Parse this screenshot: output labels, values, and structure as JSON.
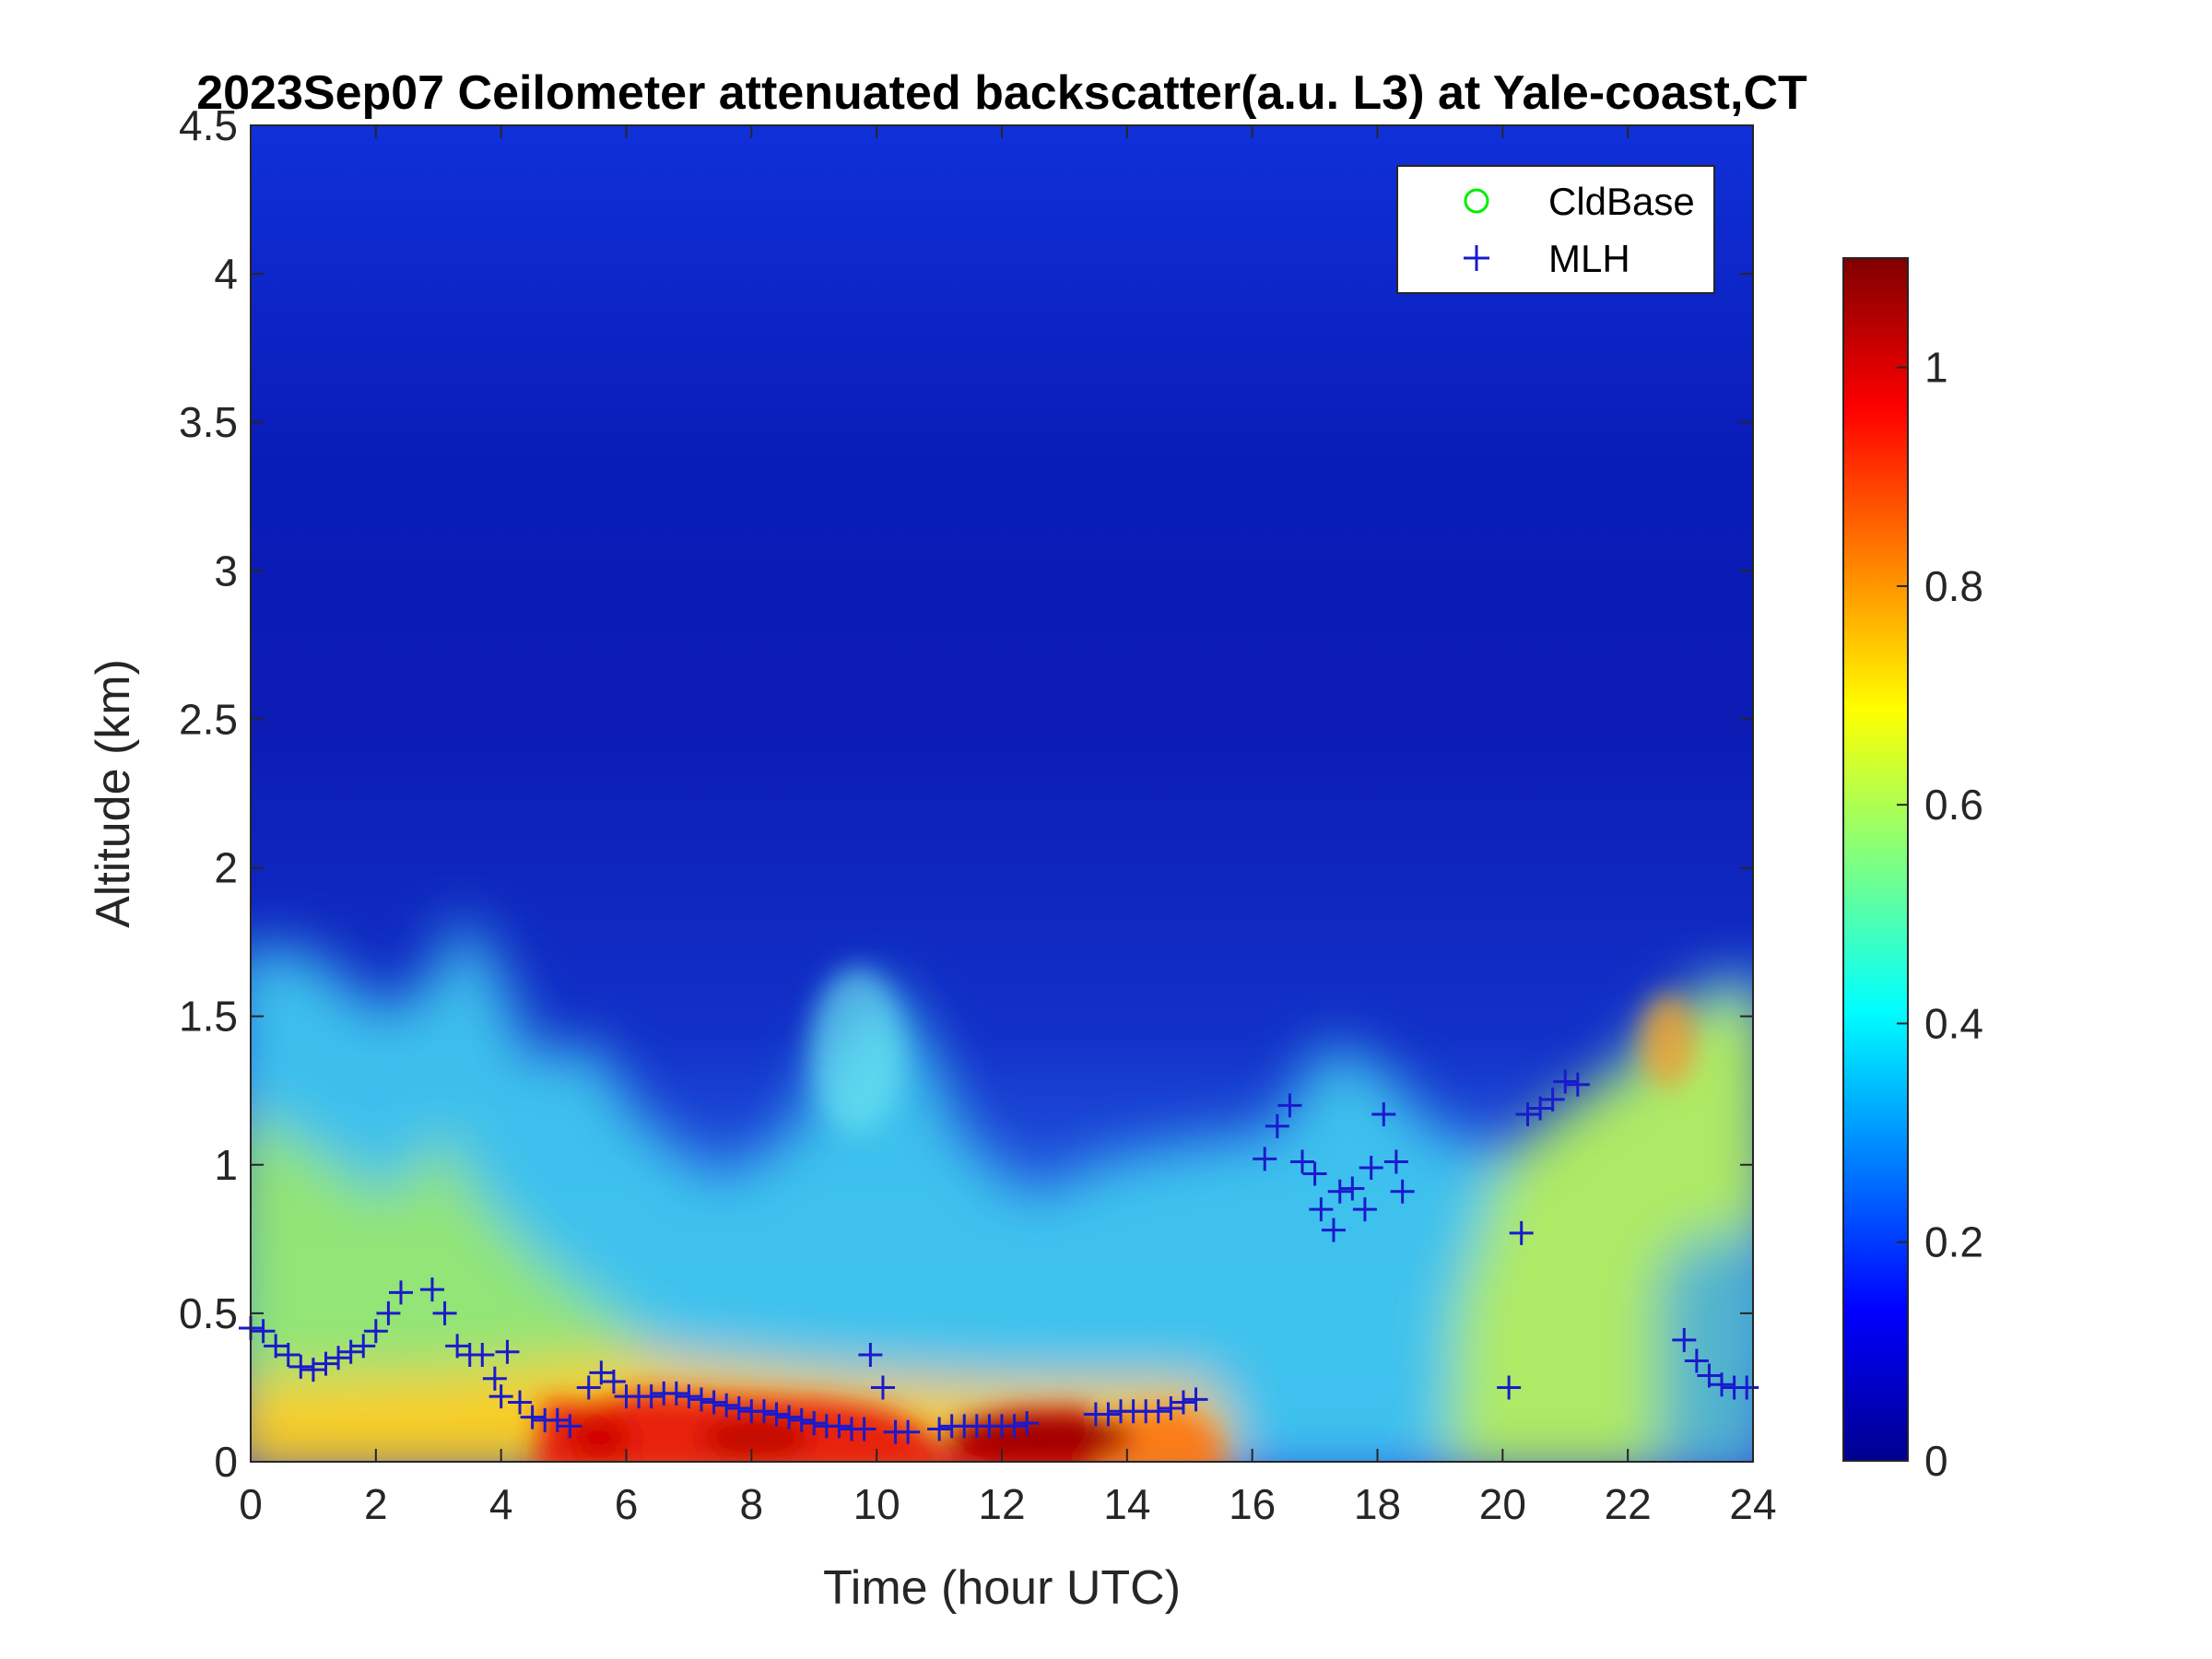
{
  "chart_data": {
    "type": "heatmap",
    "title": "2023Sep07 Ceilometer attenuated backscatter(a.u. L3) at Yale-coast,CT",
    "xlabel": "Time (hour UTC)",
    "ylabel": "Altitude (km)",
    "xlim": [
      0,
      24
    ],
    "ylim": [
      0,
      4.5
    ],
    "x_ticks": [
      "0",
      "2",
      "4",
      "6",
      "8",
      "10",
      "12",
      "14",
      "16",
      "18",
      "20",
      "22",
      "24"
    ],
    "y_ticks": [
      "0",
      "0.5",
      "1",
      "1.5",
      "2",
      "2.5",
      "3",
      "3.5",
      "4",
      "4.5"
    ],
    "colorbar": {
      "colormap": "jet",
      "clim": [
        0,
        1.1
      ],
      "ticks": [
        "0",
        "0.2",
        "0.4",
        "0.6",
        "0.8",
        "1"
      ]
    },
    "legend": {
      "position": "top-right",
      "entries": [
        {
          "label": "CldBase",
          "marker": "circle",
          "color": "#00ee00"
        },
        {
          "label": "MLH",
          "marker": "plus",
          "color": "#1a1acc"
        }
      ]
    },
    "series": [
      {
        "name": "MLH",
        "marker": "plus",
        "color": "#1a1acc",
        "points": [
          [
            0.0,
            0.45
          ],
          [
            0.2,
            0.44
          ],
          [
            0.4,
            0.39
          ],
          [
            0.6,
            0.36
          ],
          [
            0.8,
            0.32
          ],
          [
            1.0,
            0.31
          ],
          [
            1.2,
            0.33
          ],
          [
            1.4,
            0.35
          ],
          [
            1.6,
            0.37
          ],
          [
            1.8,
            0.39
          ],
          [
            2.0,
            0.44
          ],
          [
            2.2,
            0.5
          ],
          [
            2.4,
            0.57
          ],
          [
            2.9,
            0.58
          ],
          [
            3.1,
            0.5
          ],
          [
            3.3,
            0.39
          ],
          [
            3.5,
            0.36
          ],
          [
            3.7,
            0.36
          ],
          [
            3.9,
            0.28
          ],
          [
            4.0,
            0.22
          ],
          [
            4.1,
            0.37
          ],
          [
            4.3,
            0.2
          ],
          [
            4.5,
            0.15
          ],
          [
            4.7,
            0.14
          ],
          [
            4.9,
            0.14
          ],
          [
            5.1,
            0.12
          ],
          [
            5.4,
            0.25
          ],
          [
            5.6,
            0.3
          ],
          [
            5.8,
            0.27
          ],
          [
            6.0,
            0.22
          ],
          [
            6.2,
            0.22
          ],
          [
            6.4,
            0.22
          ],
          [
            6.6,
            0.23
          ],
          [
            6.8,
            0.23
          ],
          [
            7.0,
            0.22
          ],
          [
            7.2,
            0.21
          ],
          [
            7.4,
            0.2
          ],
          [
            7.6,
            0.19
          ],
          [
            7.8,
            0.18
          ],
          [
            8.0,
            0.17
          ],
          [
            8.2,
            0.17
          ],
          [
            8.4,
            0.16
          ],
          [
            8.6,
            0.15
          ],
          [
            8.8,
            0.14
          ],
          [
            9.0,
            0.13
          ],
          [
            9.2,
            0.12
          ],
          [
            9.4,
            0.12
          ],
          [
            9.6,
            0.11
          ],
          [
            9.8,
            0.11
          ],
          [
            9.9,
            0.36
          ],
          [
            10.1,
            0.25
          ],
          [
            10.3,
            0.1
          ],
          [
            10.5,
            0.1
          ],
          [
            11.0,
            0.11
          ],
          [
            11.2,
            0.12
          ],
          [
            11.4,
            0.12
          ],
          [
            11.6,
            0.12
          ],
          [
            11.8,
            0.12
          ],
          [
            12.0,
            0.12
          ],
          [
            12.2,
            0.12
          ],
          [
            12.4,
            0.13
          ],
          [
            13.5,
            0.16
          ],
          [
            13.7,
            0.16
          ],
          [
            13.9,
            0.17
          ],
          [
            14.1,
            0.17
          ],
          [
            14.3,
            0.17
          ],
          [
            14.5,
            0.17
          ],
          [
            14.7,
            0.18
          ],
          [
            14.9,
            0.2
          ],
          [
            15.1,
            0.21
          ],
          [
            16.2,
            1.02
          ],
          [
            16.4,
            1.13
          ],
          [
            16.6,
            1.2
          ],
          [
            16.8,
            1.01
          ],
          [
            17.0,
            0.97
          ],
          [
            17.1,
            0.85
          ],
          [
            17.3,
            0.78
          ],
          [
            17.4,
            0.91
          ],
          [
            17.6,
            0.92
          ],
          [
            17.8,
            0.85
          ],
          [
            17.9,
            0.99
          ],
          [
            18.1,
            1.17
          ],
          [
            18.3,
            1.01
          ],
          [
            18.4,
            0.91
          ],
          [
            20.1,
            0.25
          ],
          [
            20.3,
            0.77
          ],
          [
            20.4,
            1.17
          ],
          [
            20.6,
            1.19
          ],
          [
            20.8,
            1.22
          ],
          [
            21.0,
            1.28
          ],
          [
            21.2,
            1.27
          ],
          [
            22.9,
            0.41
          ],
          [
            23.1,
            0.34
          ],
          [
            23.3,
            0.29
          ],
          [
            23.5,
            0.26
          ],
          [
            23.7,
            0.25
          ],
          [
            23.9,
            0.25
          ]
        ]
      },
      {
        "name": "CldBase",
        "marker": "circle",
        "color": "#00ee00",
        "points": []
      }
    ]
  }
}
